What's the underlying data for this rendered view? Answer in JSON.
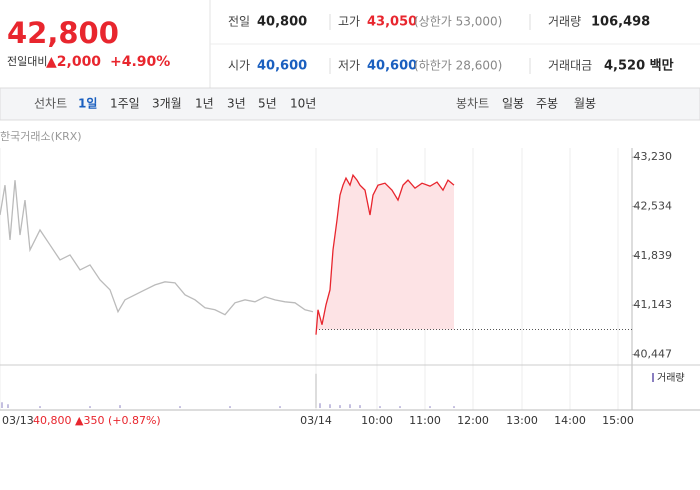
{
  "header": {
    "price": "42,800",
    "change_label": "전일대비",
    "change": "▲2,000",
    "change_pct": "+4.90%",
    "row1": [
      {
        "label": "전일",
        "value": "40,800"
      },
      {
        "label": "고가",
        "value": "43,050",
        "note": "(상한가 53,000)"
      },
      {
        "label": "거래량",
        "value": "106,498"
      }
    ],
    "row2": [
      {
        "label": "시가",
        "value": "40,600"
      },
      {
        "label": "저가",
        "value": "40,600",
        "note": "(하한가 28,600)"
      },
      {
        "label": "거래대금",
        "value": "4,520 백만"
      }
    ]
  },
  "tabs": {
    "line_label": "선차트",
    "line_periods": [
      "1일",
      "1주일",
      "3개월",
      "1년",
      "3년",
      "5년",
      "10년"
    ],
    "candle_label": "봉차트",
    "candle_periods": [
      "일봉",
      "주봉",
      "월봉"
    ]
  },
  "chart_data": {
    "type": "line",
    "source": "한국거래소(KRX)",
    "prev_summary": "40,800 ▲350 (+0.87%)",
    "xlim": [
      0,
      632
    ],
    "ylim": [
      40300,
      43360
    ],
    "baseline": 40800,
    "xticks": [
      {
        "value": 0,
        "label": "03/13"
      },
      {
        "value": 316,
        "label": "03/14"
      },
      {
        "value": 377,
        "label": "10:00"
      },
      {
        "value": 425,
        "label": "11:00"
      },
      {
        "value": 473,
        "label": "12:00"
      },
      {
        "value": 522,
        "label": "13:00"
      },
      {
        "value": 570,
        "label": "14:00"
      },
      {
        "value": 618,
        "label": "15:00"
      }
    ],
    "yticks": [
      {
        "value": 43230,
        "label": "43,230"
      },
      {
        "value": 42534,
        "label": "42,534"
      },
      {
        "value": 41839,
        "label": "41,839"
      },
      {
        "value": 41143,
        "label": "41,143"
      },
      {
        "value": 40447,
        "label": "40,447"
      }
    ],
    "series": [
      {
        "color": "#bbbbbb",
        "x": [
          0,
          5,
          10,
          15,
          20,
          25,
          30,
          40,
          50,
          60,
          70,
          80,
          90,
          100,
          110,
          118,
          125,
          135,
          145,
          155,
          165,
          175,
          185,
          195,
          205,
          215,
          225,
          235,
          245,
          255,
          265,
          275,
          285,
          295,
          305,
          313
        ],
        "values": [
          42415,
          42836,
          42063,
          42907,
          42133,
          42625,
          41922,
          42204,
          41993,
          41782,
          41852,
          41641,
          41711,
          41501,
          41360,
          41051,
          41219,
          41290,
          41360,
          41430,
          41473,
          41459,
          41290,
          41219,
          41107,
          41079,
          41009,
          41177,
          41219,
          41191,
          41262,
          41219,
          41191,
          41177,
          41079,
          41051
        ]
      },
      {
        "color": "#e8262e",
        "fill": "#fde3e5",
        "x": [
          316,
          318,
          322,
          326,
          330,
          333,
          337,
          340,
          343,
          346,
          350,
          353,
          357,
          360,
          365,
          370,
          373,
          378,
          385,
          392,
          398,
          403,
          408,
          415,
          422,
          430,
          437,
          443,
          448,
          454
        ],
        "values": [
          40727,
          41079,
          40868,
          41149,
          41360,
          41922,
          42344,
          42696,
          42836,
          42935,
          42836,
          42977,
          42907,
          42836,
          42766,
          42415,
          42696,
          42836,
          42864,
          42766,
          42625,
          42836,
          42907,
          42794,
          42864,
          42822,
          42879,
          42766,
          42907,
          42836
        ]
      }
    ],
    "volume": {
      "name": "거래량",
      "color": "#8a7fc0",
      "ylim": [
        0,
        40
      ],
      "x": [
        2,
        8,
        40,
        90,
        120,
        180,
        230,
        280,
        316,
        320,
        330,
        340,
        350,
        360,
        380,
        400,
        430,
        454
      ],
      "values": [
        6,
        4,
        2,
        2,
        3,
        2,
        2,
        2,
        36,
        5,
        4,
        3,
        4,
        3,
        2,
        2,
        2,
        2
      ]
    }
  }
}
